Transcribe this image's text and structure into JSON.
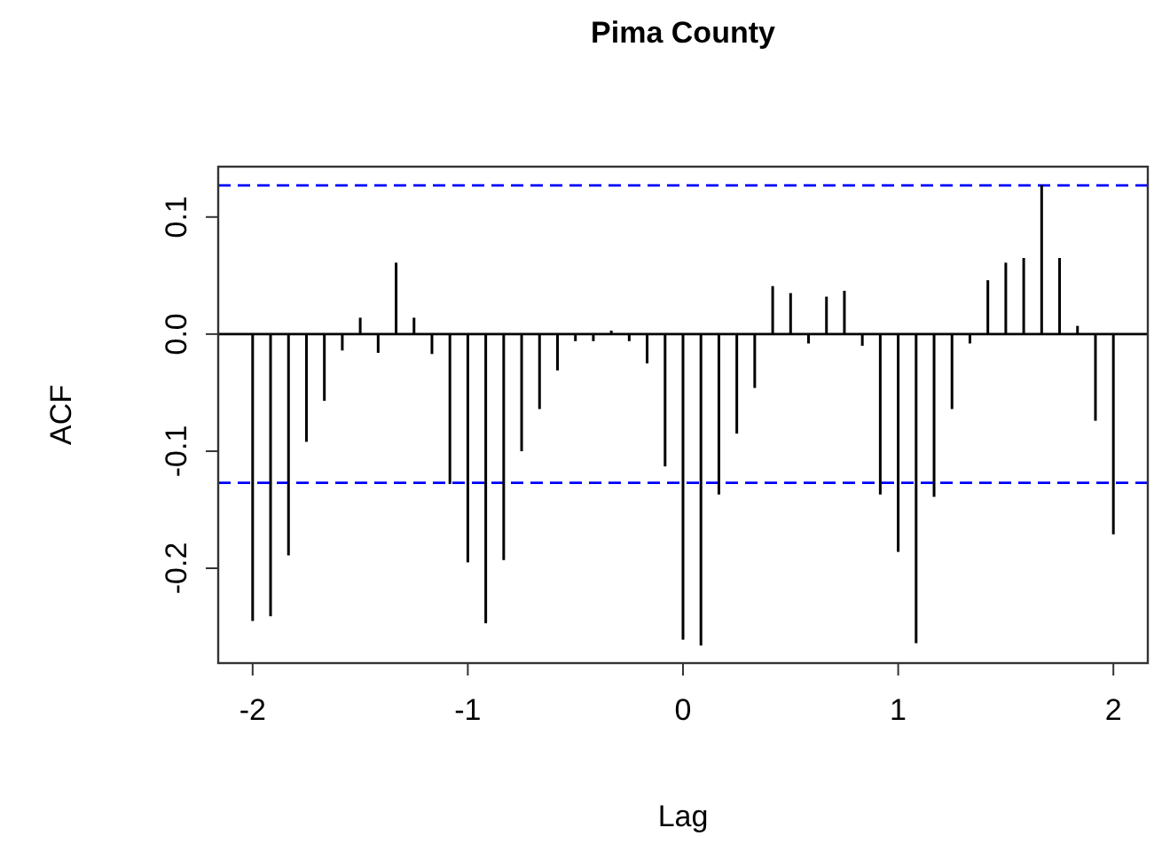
{
  "chart_data": {
    "type": "bar",
    "title": "Pima County",
    "xlabel": "Lag",
    "ylabel": "ACF",
    "x": [
      -2,
      -1.9167,
      -1.8333,
      -1.75,
      -1.6667,
      -1.5833,
      -1.5,
      -1.4167,
      -1.3333,
      -1.25,
      -1.1667,
      -1.0833,
      -1,
      -0.9167,
      -0.8333,
      -0.75,
      -0.6667,
      -0.5833,
      -0.5,
      -0.4167,
      -0.3333,
      -0.25,
      -0.1667,
      -0.0833,
      0,
      0.0833,
      0.1667,
      0.25,
      0.3333,
      0.4167,
      0.5,
      0.5833,
      0.6667,
      0.75,
      0.8333,
      0.9167,
      1,
      1.0833,
      1.1667,
      1.25,
      1.3333,
      1.4167,
      1.5,
      1.5833,
      1.6667,
      1.75,
      1.8333,
      1.9167,
      2
    ],
    "values": [
      -0.245,
      -0.241,
      -0.189,
      -0.092,
      -0.057,
      -0.014,
      0.014,
      -0.016,
      0.061,
      0.014,
      -0.017,
      -0.128,
      -0.195,
      -0.247,
      -0.193,
      -0.1,
      -0.064,
      -0.031,
      -0.006,
      -0.006,
      0.003,
      -0.006,
      -0.025,
      -0.113,
      -0.261,
      -0.266,
      -0.137,
      -0.085,
      -0.046,
      0.041,
      0.035,
      -0.008,
      0.032,
      0.037,
      -0.01,
      -0.137,
      -0.186,
      -0.264,
      -0.139,
      -0.064,
      -0.008,
      0.046,
      0.061,
      0.065,
      0.127,
      0.065,
      0.007,
      -0.074,
      -0.171
    ],
    "color": "#000000",
    "xlim": [
      -2.16,
      2.16
    ],
    "ylim": [
      -0.281,
      0.143
    ],
    "xticks": [
      -2,
      -1,
      0,
      1,
      2
    ],
    "yticks": [
      {
        "value": 0.1,
        "label": "0.1"
      },
      {
        "value": 0,
        "label": "0.0"
      },
      {
        "value": -0.1,
        "label": "-0.1"
      },
      {
        "value": -0.2,
        "label": "-0.2"
      }
    ],
    "ref_lines": [
      {
        "axis": "y",
        "value": 0,
        "color": "#000000",
        "line_style": "solid"
      },
      {
        "axis": "y",
        "value": 0.127,
        "color": "#0000ff",
        "line_style": "dashed"
      },
      {
        "axis": "y",
        "value": -0.127,
        "color": "#0000ff",
        "line_style": "dashed"
      }
    ],
    "grid": false
  }
}
